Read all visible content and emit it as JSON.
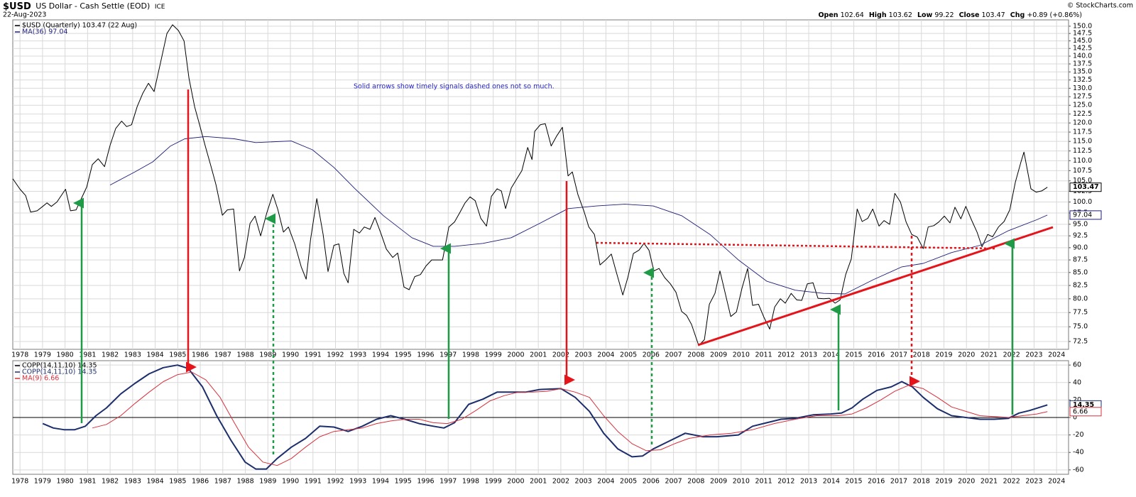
{
  "header": {
    "symbol": "$USD",
    "name": "US Dollar - Cash Settle (EOD)",
    "exchange": "ICE",
    "date": "22-Aug-2023",
    "copyright": "© StockCharts.com",
    "quote": [
      {
        "label": "Open",
        "value": "102.64"
      },
      {
        "label": "High",
        "value": "103.62"
      },
      {
        "label": "Low",
        "value": "99.22"
      },
      {
        "label": "Close",
        "value": "103.47"
      },
      {
        "label": "Chg",
        "value": "+0.89 (+0.86%)"
      }
    ]
  },
  "chart_data": [
    {
      "type": "line",
      "log": true,
      "grid": true,
      "annotation": "Solid arrows show timely signals dashed ones not so much.",
      "xlim": [
        1977.68,
        2024.53
      ],
      "ylim": [
        71.2,
        152.2
      ],
      "xticks": [
        1978,
        1979,
        1980,
        1981,
        1982,
        1983,
        1984,
        1985,
        1986,
        1987,
        1988,
        1989,
        1990,
        1991,
        1992,
        1993,
        1994,
        1995,
        1996,
        1997,
        1998,
        1999,
        2000,
        2001,
        2002,
        2003,
        2004,
        2005,
        2006,
        2007,
        2008,
        2009,
        2010,
        2011,
        2012,
        2013,
        2014,
        2015,
        2016,
        2017,
        2018,
        2019,
        2020,
        2021,
        2022,
        2023,
        2024
      ],
      "yticks": [
        72.5,
        {
          "value": 75,
          "label": "75.0"
        },
        77.5,
        {
          "value": 80,
          "label": "80.0"
        },
        82.5,
        {
          "value": 85,
          "label": "85.0"
        },
        87.5,
        {
          "value": 90,
          "label": "90.0"
        },
        92.5,
        {
          "value": 95,
          "label": "95.0"
        },
        97.5,
        {
          "value": 100,
          "label": "100.0"
        },
        102.5,
        {
          "value": 105,
          "label": "105.0"
        },
        107.5,
        {
          "value": 110,
          "label": "110.0"
        },
        112.5,
        {
          "value": 115,
          "label": "115.0"
        },
        117.5,
        {
          "value": 120,
          "label": "120.0"
        },
        122.5,
        {
          "value": 125,
          "label": "125.0"
        },
        127.5,
        {
          "value": 130,
          "label": "130.0"
        },
        132.5,
        {
          "value": 135,
          "label": "135.0"
        },
        137.5,
        {
          "value": 140,
          "label": "140.0"
        },
        142.5,
        {
          "value": 145,
          "label": "145.0"
        },
        147.5,
        {
          "value": 150,
          "label": "150.0"
        }
      ],
      "series": [
        {
          "name": "$USD (Quarterly) 103.47 (22 Aug)",
          "color": "#000000",
          "x": [
            1977.68,
            1978.0,
            1978.25,
            1978.47,
            1978.76,
            1979.01,
            1979.2,
            1979.39,
            1979.64,
            1980.02,
            1980.24,
            1980.49,
            1980.74,
            1980.96,
            1981.21,
            1981.47,
            1981.75,
            1982.0,
            1982.25,
            1982.51,
            1982.73,
            1982.95,
            1983.2,
            1983.45,
            1983.7,
            1983.95,
            1984.24,
            1984.52,
            1984.77,
            1985.03,
            1985.28,
            1985.5,
            1985.75,
            1985.97,
            1986.22,
            1986.48,
            1986.7,
            1986.98,
            1987.2,
            1987.48,
            1987.74,
            1987.96,
            1988.21,
            1988.43,
            1988.68,
            1988.95,
            1989.22,
            1989.44,
            1989.69,
            1989.91,
            1990.19,
            1990.48,
            1990.7,
            1990.89,
            1991.17,
            1991.45,
            1991.67,
            1991.93,
            1992.15,
            1992.37,
            1992.56,
            1992.81,
            1993.06,
            1993.28,
            1993.53,
            1993.75,
            1994.01,
            1994.26,
            1994.54,
            1994.76,
            1995.04,
            1995.27,
            1995.52,
            1995.77,
            1996.02,
            1996.27,
            1996.49,
            1996.75,
            1997.03,
            1997.28,
            1997.53,
            1997.75,
            1997.97,
            1998.2,
            1998.45,
            1998.7,
            1998.92,
            1999.17,
            1999.36,
            1999.55,
            1999.8,
            2000.05,
            2000.27,
            2000.53,
            2000.72,
            2000.84,
            2001.09,
            2001.31,
            2001.57,
            2001.82,
            2002.07,
            2002.32,
            2002.51,
            2002.76,
            2003.02,
            2003.24,
            2003.49,
            2003.74,
            2003.99,
            2004.24,
            2004.46,
            2004.75,
            2004.97,
            2005.22,
            2005.47,
            2005.69,
            2005.91,
            2006.13,
            2006.36,
            2006.61,
            2006.86,
            2007.11,
            2007.36,
            2007.58,
            2007.8,
            2008.12,
            2008.37,
            2008.59,
            2008.84,
            2009.06,
            2009.32,
            2009.54,
            2009.79,
            2010.04,
            2010.29,
            2010.51,
            2010.77,
            2011.02,
            2011.27,
            2011.49,
            2011.74,
            2011.96,
            2012.22,
            2012.47,
            2012.69,
            2012.94,
            2013.19,
            2013.41,
            2013.66,
            2013.92,
            2014.17,
            2014.39,
            2014.64,
            2014.89,
            2015.15,
            2015.37,
            2015.62,
            2015.84,
            2016.12,
            2016.34,
            2016.59,
            2016.82,
            2017.07,
            2017.32,
            2017.57,
            2017.82,
            2018.08,
            2018.3,
            2018.55,
            2018.77,
            2019.02,
            2019.27,
            2019.49,
            2019.75,
            2019.97,
            2020.22,
            2020.47,
            2020.69,
            2020.94,
            2021.16,
            2021.42,
            2021.67,
            2021.92,
            2022.17,
            2022.42,
            2022.55,
            2022.86,
            2023.09,
            2023.34,
            2023.59
          ],
          "values": [
            105.5,
            103,
            101.5,
            97.7,
            98,
            99,
            99.8,
            99,
            100,
            103,
            98,
            98.2,
            101,
            103.5,
            109,
            110.5,
            108.5,
            114,
            118.5,
            120.5,
            119,
            119.5,
            124.6,
            128.5,
            131.5,
            129,
            138,
            147.5,
            150.5,
            148.5,
            145,
            133,
            124.6,
            119.5,
            113.8,
            108.5,
            104,
            97,
            98.2,
            98.4,
            85.3,
            88,
            95.2,
            96.8,
            92.5,
            97.5,
            101.8,
            98.3,
            93.3,
            94.4,
            90.8,
            86.1,
            83.7,
            91.6,
            100.8,
            92.8,
            85.2,
            90.5,
            90.8,
            84.8,
            83,
            93.9,
            93.1,
            94.4,
            93.9,
            96.5,
            93.1,
            89.7,
            88,
            88.9,
            82.2,
            81.7,
            84.2,
            84.6,
            86.3,
            87.5,
            87.5,
            87.5,
            94.4,
            95.5,
            97.7,
            99.8,
            101.2,
            100.3,
            96.3,
            94.6,
            101.3,
            103.1,
            102.6,
            98.5,
            103.3,
            105.5,
            107.5,
            113.4,
            110.3,
            117.7,
            119.5,
            119.8,
            113.8,
            116.5,
            118.8,
            106.2,
            107.2,
            101.7,
            98,
            94.4,
            92.8,
            86.5,
            87.5,
            88.7,
            85.1,
            80.7,
            84,
            88.8,
            89.5,
            90.9,
            89.5,
            85.3,
            85.8,
            84,
            82.8,
            81.2,
            77.7,
            77,
            75.4,
            71.8,
            72.8,
            79,
            81,
            85.3,
            80.6,
            76.8,
            77.6,
            82,
            85.8,
            78.8,
            79,
            76.6,
            74.6,
            78.5,
            80,
            79.2,
            81,
            79.8,
            79.7,
            82.8,
            83,
            80.1,
            80,
            80.1,
            79.2,
            79.8,
            84.6,
            87.7,
            98.4,
            95.6,
            96.3,
            98.4,
            94.6,
            95.8,
            95,
            102,
            100,
            95.5,
            92.8,
            92.2,
            89.8,
            94.4,
            94.7,
            95.5,
            96.8,
            95.3,
            98.8,
            96.2,
            99,
            96,
            93.3,
            90.2,
            92.8,
            92.3,
            94.4,
            95.6,
            98.2,
            104.7,
            109.7,
            112.2,
            103.1,
            102.3,
            102.6,
            103.47
          ]
        },
        {
          "name": "MA(36) 97.04",
          "color": "#1c1c78",
          "x": [
            1982.0,
            1983.1,
            1983.89,
            1984.68,
            1985.31,
            1986.25,
            1987.51,
            1988.46,
            1990.04,
            1990.98,
            1991.93,
            1992.87,
            1994.13,
            1995.39,
            1996.34,
            1997.28,
            1998.54,
            1999.8,
            2001.06,
            2002.32,
            2003.58,
            2004.84,
            2006.1,
            2007.36,
            2008.62,
            2009.88,
            2011.14,
            2012.4,
            2013.66,
            2014.61,
            2015.87,
            2017.13,
            2018.08,
            2019.34,
            2020.6,
            2021.86,
            2023.12,
            2023.59
          ],
          "values": [
            104,
            107.2,
            109.7,
            113.8,
            115.7,
            116.3,
            115.7,
            114.7,
            115.1,
            112.8,
            108.3,
            103.1,
            96.9,
            92.1,
            90.3,
            90.3,
            90.9,
            92.1,
            95.2,
            98.5,
            99.1,
            99.5,
            99.1,
            96.9,
            92.8,
            87.5,
            83.3,
            81.6,
            81,
            80.9,
            83.6,
            86.1,
            86.8,
            89,
            90.5,
            93.6,
            96,
            97.04
          ]
        }
      ]
    },
    {
      "type": "line",
      "log": false,
      "grid": true,
      "zero_line": true,
      "legend_title": "COPP(14,11,10) 14.35",
      "xlim": [
        1977.68,
        2024.53
      ],
      "ylim": [
        -65,
        65
      ],
      "xticks": [
        1978,
        1979,
        1980,
        1981,
        1982,
        1983,
        1984,
        1985,
        1986,
        1987,
        1988,
        1989,
        1990,
        1991,
        1992,
        1993,
        1994,
        1995,
        1996,
        1997,
        1998,
        1999,
        2000,
        2001,
        2002,
        2003,
        2004,
        2005,
        2006,
        2007,
        2008,
        2009,
        2010,
        2011,
        2012,
        2013,
        2014,
        2015,
        2016,
        2017,
        2018,
        2019,
        2020,
        2021,
        2022,
        2023,
        2024
      ],
      "yticks": [
        -60,
        -40,
        -20,
        0,
        20,
        40,
        60
      ],
      "series": [
        {
          "name": "COPP(14,11,10) 14.35",
          "color": "#1c2e6b",
          "x": [
            1979.01,
            1979.48,
            1979.95,
            1980.43,
            1980.9,
            1981.37,
            1981.84,
            1982.47,
            1983.1,
            1983.73,
            1984.36,
            1984.99,
            1985.47,
            1986.1,
            1986.73,
            1987.36,
            1987.99,
            1988.46,
            1988.93,
            1989.41,
            1990.04,
            1990.67,
            1991.3,
            1991.93,
            1992.56,
            1993.19,
            1993.82,
            1994.45,
            1995.08,
            1995.71,
            1996.34,
            1996.81,
            1997.28,
            1997.91,
            1998.54,
            1999.17,
            1999.8,
            2000.43,
            2001.06,
            2002.01,
            2002.64,
            2003.27,
            2003.9,
            2004.53,
            2005.16,
            2005.63,
            2006.1,
            2006.73,
            2007.52,
            2008.31,
            2008.94,
            2009.88,
            2010.51,
            2011.14,
            2011.77,
            2012.4,
            2013.19,
            2013.98,
            2014.45,
            2014.92,
            2015.4,
            2016.03,
            2016.66,
            2017.13,
            2017.6,
            2018.08,
            2018.71,
            2019.34,
            2019.97,
            2020.6,
            2021.23,
            2021.86,
            2022.33,
            2022.8,
            2023.59
          ],
          "values": [
            -7,
            -12,
            -14,
            -14,
            -10,
            2,
            11,
            27,
            39,
            50,
            57,
            60,
            56,
            35,
            2,
            -26,
            -51,
            -59,
            -59,
            -47,
            -34,
            -24,
            -10,
            -11,
            -16,
            -10,
            -2,
            2,
            -2,
            -7,
            -10,
            -12,
            -6,
            15,
            21,
            29,
            29,
            29,
            32,
            33,
            23,
            7,
            -18,
            -36,
            -45,
            -44,
            -36,
            -28,
            -18,
            -22,
            -22,
            -20,
            -10,
            -6,
            -2,
            -1,
            3,
            4,
            5,
            11,
            21,
            31,
            35,
            41,
            35,
            23,
            10,
            2,
            0,
            -2,
            -2,
            -1,
            5,
            8,
            14.35
          ]
        },
        {
          "name": "MA(9) 6.66",
          "color": "#d8303c",
          "x": [
            1981.21,
            1981.84,
            1982.47,
            1983.1,
            1983.73,
            1984.36,
            1984.99,
            1985.62,
            1986.25,
            1986.88,
            1987.51,
            1988.14,
            1988.78,
            1989.41,
            1990.04,
            1990.67,
            1991.3,
            1991.93,
            1992.56,
            1993.19,
            1993.82,
            1994.45,
            1995.08,
            1995.71,
            1996.34,
            1996.97,
            1997.6,
            1998.23,
            1998.86,
            1999.49,
            2000.12,
            2000.75,
            2001.38,
            2002.01,
            2002.64,
            2003.27,
            2003.9,
            2004.53,
            2005.16,
            2005.79,
            2006.42,
            2007.05,
            2007.68,
            2008.62,
            2009.57,
            2010.51,
            2011.46,
            2012.4,
            2013.35,
            2014.29,
            2014.92,
            2015.55,
            2016.19,
            2016.82,
            2017.44,
            2018.08,
            2018.71,
            2019.34,
            2019.97,
            2020.6,
            2021.23,
            2021.86,
            2022.49,
            2023.12,
            2023.59
          ],
          "values": [
            -12,
            -8,
            2,
            16,
            29,
            41,
            49,
            52,
            43,
            23,
            -6,
            -34,
            -51,
            -55,
            -47,
            -34,
            -22,
            -16,
            -14,
            -12,
            -7,
            -4,
            -2,
            -2,
            -6,
            -7,
            -2,
            8,
            19,
            25,
            29,
            29,
            30,
            33,
            29,
            23,
            2,
            -16,
            -30,
            -38,
            -37,
            -30,
            -24,
            -20,
            -18,
            -14,
            -7,
            -2,
            2,
            2,
            4,
            11,
            20,
            30,
            37,
            33,
            23,
            12,
            7,
            2,
            1,
            0,
            2,
            4,
            6.66
          ]
        }
      ]
    }
  ]
}
